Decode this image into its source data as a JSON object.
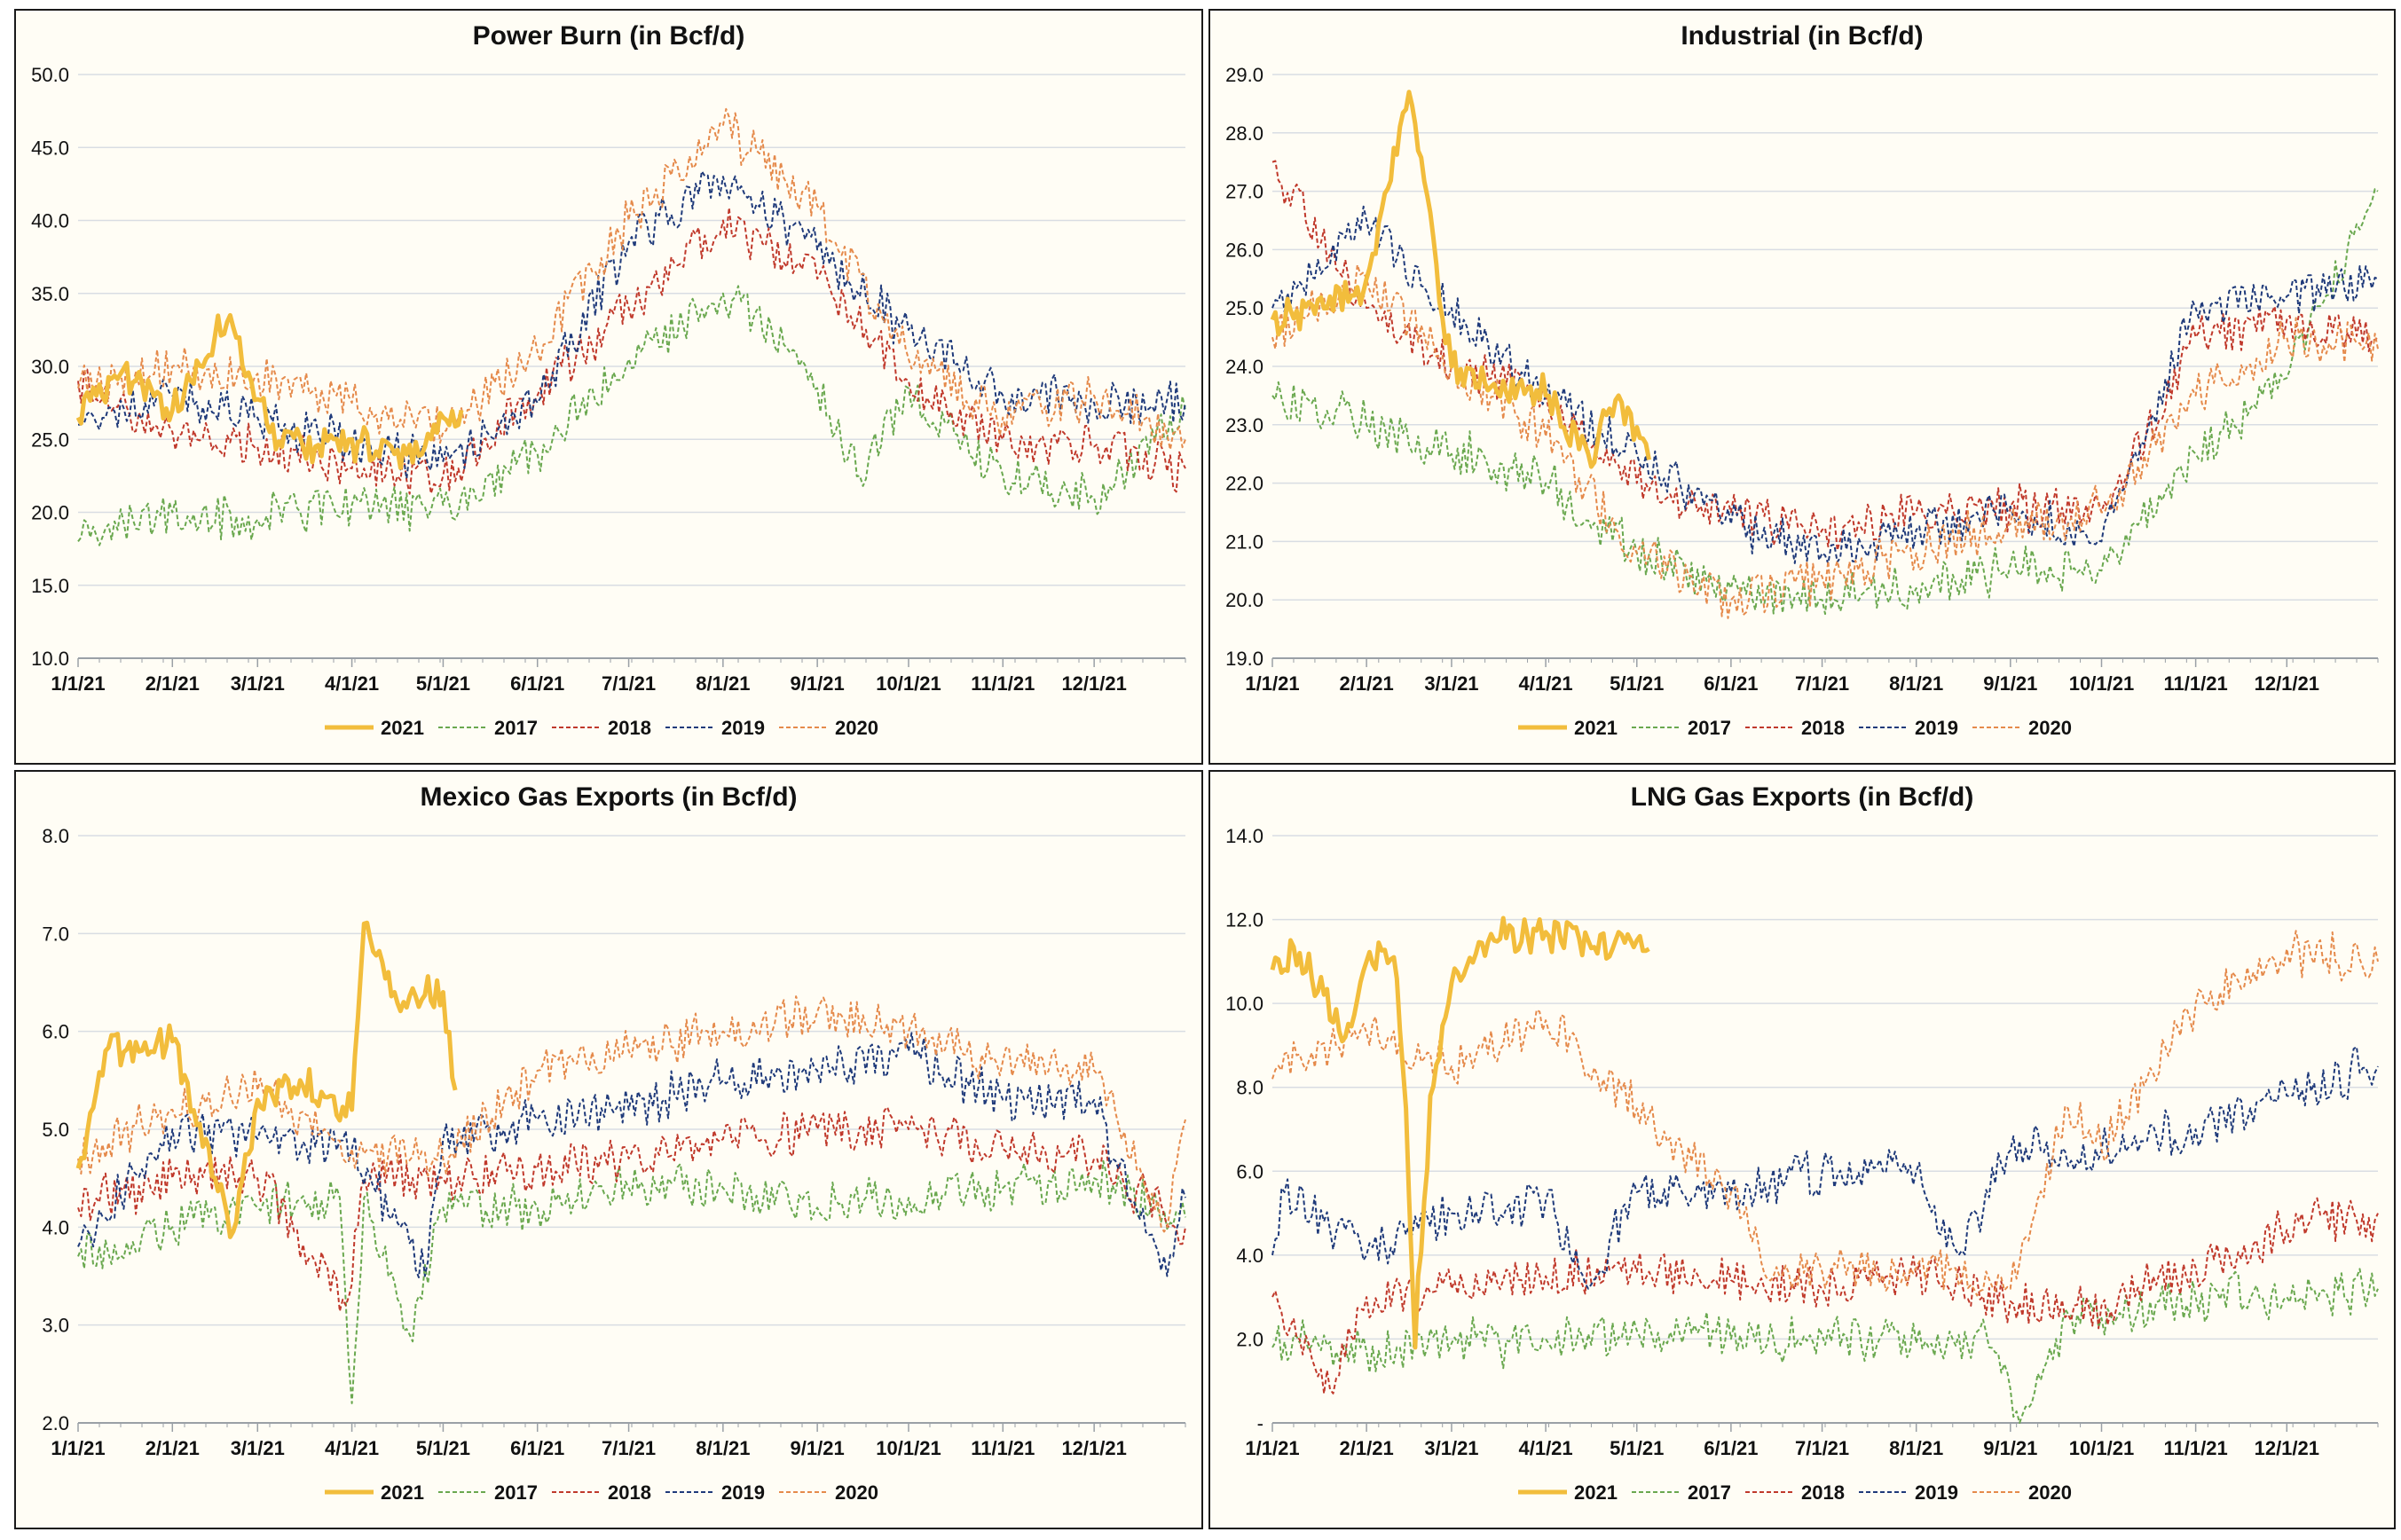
{
  "colors": {
    "2021": "#f2bd3c",
    "2017": "#6aa84f",
    "2018": "#c0392b",
    "2019": "#1f3a7a",
    "2020": "#e58a4b",
    "grid": "#d9dde3",
    "axis": "#9aa0a6",
    "panel_bg": "#fffdf5"
  },
  "legend": [
    "2021",
    "2017",
    "2018",
    "2019",
    "2020"
  ],
  "x_ticks": [
    "1/1/21",
    "2/1/21",
    "3/1/21",
    "4/1/21",
    "5/1/21",
    "6/1/21",
    "7/1/21",
    "8/1/21",
    "9/1/21",
    "10/1/21",
    "11/1/21",
    "12/1/21"
  ],
  "chart_data": [
    {
      "type": "line",
      "title": "Power Burn (in Bcf/d)",
      "x_axis": "date (Jan 1 – Dec 31)",
      "ylim": [
        10,
        50
      ],
      "y_ticks": [
        "10.0",
        "15.0",
        "20.0",
        "25.0",
        "30.0",
        "35.0",
        "40.0",
        "45.0",
        "50.0"
      ],
      "y_tick_values": [
        10,
        15,
        20,
        25,
        30,
        35,
        40,
        45,
        50
      ],
      "legend_position": "bottom",
      "grid": true,
      "series": [
        {
          "name": "2021",
          "style": "solid",
          "x": [
            "1/1/21",
            "1/15/21",
            "2/1/21",
            "2/20/21",
            "3/5/21",
            "3/20/21",
            "4/1/21",
            "4/15/21",
            "4/25/21",
            "5/1/21",
            "5/7/21"
          ],
          "values": [
            26.5,
            29.5,
            27.0,
            33.5,
            25.5,
            24.5,
            25.0,
            24.0,
            24.5,
            26.5,
            27.0
          ]
        },
        {
          "name": "2017",
          "style": "dashed",
          "x": [
            "1/1/21",
            "2/1/21",
            "3/1/21",
            "4/1/21",
            "5/1/21",
            "6/1/21",
            "7/1/21",
            "8/1/21",
            "8/25/21",
            "9/15/21",
            "10/1/21",
            "11/1/21",
            "12/1/21",
            "12/31/21"
          ],
          "values": [
            18.0,
            20.0,
            19.5,
            20.5,
            20.5,
            24.0,
            30.5,
            35.0,
            31.0,
            22.5,
            28.5,
            22.5,
            21.0,
            27.0
          ]
        },
        {
          "name": "2018",
          "style": "dashed",
          "x": [
            "1/1/21",
            "2/1/21",
            "3/1/21",
            "4/1/21",
            "5/1/21",
            "6/1/21",
            "7/1/21",
            "8/1/21",
            "9/1/21",
            "10/1/21",
            "11/1/21",
            "12/1/21",
            "12/31/21"
          ],
          "values": [
            29.0,
            25.5,
            24.5,
            23.0,
            22.5,
            28.0,
            34.0,
            40.0,
            36.0,
            29.0,
            25.0,
            24.5,
            23.0
          ]
        },
        {
          "name": "2019",
          "style": "dashed",
          "x": [
            "1/1/21",
            "2/1/21",
            "3/1/21",
            "4/1/21",
            "5/1/21",
            "6/1/21",
            "7/1/21",
            "8/1/21",
            "9/1/21",
            "10/1/21",
            "11/1/21",
            "12/1/21",
            "12/31/21"
          ],
          "values": [
            26.0,
            28.0,
            26.5,
            24.5,
            23.5,
            27.5,
            38.5,
            43.0,
            38.0,
            32.5,
            28.0,
            27.5,
            27.5
          ]
        },
        {
          "name": "2020",
          "style": "dashed",
          "x": [
            "1/1/21",
            "2/1/21",
            "3/1/21",
            "4/1/21",
            "5/1/21",
            "6/1/21",
            "7/1/21",
            "8/1/21",
            "9/1/21",
            "10/1/21",
            "11/1/21",
            "12/1/21",
            "12/31/21"
          ],
          "values": [
            28.5,
            30.0,
            29.5,
            27.5,
            25.5,
            31.0,
            40.0,
            46.5,
            41.0,
            30.5,
            26.5,
            28.0,
            25.0
          ]
        }
      ]
    },
    {
      "type": "line",
      "title": "Industrial (in Bcf/d)",
      "x_axis": "date (Jan 1 – Dec 31)",
      "ylim": [
        19,
        29
      ],
      "y_ticks": [
        "19.0",
        "20.0",
        "21.0",
        "22.0",
        "23.0",
        "24.0",
        "25.0",
        "26.0",
        "27.0",
        "28.0",
        "29.0"
      ],
      "y_tick_values": [
        19,
        20,
        21,
        22,
        23,
        24,
        25,
        26,
        27,
        28,
        29
      ],
      "legend_position": "bottom",
      "grid": true,
      "series": [
        {
          "name": "2021",
          "style": "solid",
          "x": [
            "1/1/21",
            "1/15/21",
            "2/1/21",
            "2/15/21",
            "3/1/21",
            "3/15/21",
            "4/1/21",
            "4/15/21",
            "4/25/21",
            "5/5/21"
          ],
          "values": [
            24.8,
            24.9,
            25.5,
            28.7,
            24.0,
            23.7,
            23.5,
            22.5,
            23.5,
            22.4
          ]
        },
        {
          "name": "2017",
          "style": "dashed",
          "x": [
            "1/1/21",
            "2/1/21",
            "3/1/21",
            "4/1/21",
            "5/1/21",
            "6/1/21",
            "7/1/21",
            "8/1/21",
            "9/1/21",
            "10/1/21",
            "11/1/21",
            "12/1/21",
            "12/31/21"
          ],
          "values": [
            23.5,
            23.0,
            22.5,
            22.0,
            20.8,
            20.2,
            20.0,
            20.2,
            20.6,
            20.5,
            22.5,
            23.8,
            27.0
          ]
        },
        {
          "name": "2018",
          "style": "dashed",
          "x": [
            "1/1/21",
            "2/1/21",
            "3/1/21",
            "4/1/21",
            "5/1/21",
            "6/1/21",
            "7/1/21",
            "8/1/21",
            "9/1/21",
            "10/1/21",
            "11/1/21",
            "12/1/21",
            "12/31/21"
          ],
          "values": [
            27.5,
            25.0,
            24.0,
            23.5,
            22.0,
            21.5,
            21.2,
            21.5,
            21.6,
            21.5,
            24.5,
            24.8,
            24.5
          ]
        },
        {
          "name": "2019",
          "style": "dashed",
          "x": [
            "1/1/21",
            "2/1/21",
            "3/1/21",
            "4/1/21",
            "5/1/21",
            "6/1/21",
            "7/1/21",
            "8/1/21",
            "9/1/21",
            "10/1/21",
            "11/1/21",
            "12/1/21",
            "12/31/21"
          ],
          "values": [
            25.0,
            26.5,
            25.0,
            23.5,
            22.5,
            21.3,
            20.8,
            21.2,
            21.6,
            21.0,
            25.0,
            25.2,
            25.5
          ]
        },
        {
          "name": "2020",
          "style": "dashed",
          "x": [
            "1/1/21",
            "2/1/21",
            "3/1/21",
            "4/1/21",
            "5/1/21",
            "6/1/21",
            "7/1/21",
            "8/1/21",
            "9/1/21",
            "10/1/21",
            "11/1/21",
            "12/1/21",
            "12/31/21"
          ],
          "values": [
            24.5,
            25.5,
            24.0,
            22.8,
            20.8,
            20.0,
            20.4,
            20.8,
            21.3,
            21.5,
            23.5,
            24.5,
            24.3
          ]
        }
      ]
    },
    {
      "type": "line",
      "title": "Mexico Gas Exports (in Bcf/d)",
      "x_axis": "date (Jan 1 – Dec 31)",
      "ylim": [
        2,
        8
      ],
      "y_ticks": [
        "2.0",
        "3.0",
        "4.0",
        "5.0",
        "6.0",
        "7.0",
        "8.0"
      ],
      "y_tick_values": [
        2,
        3,
        4,
        5,
        6,
        7,
        8
      ],
      "legend_position": "bottom",
      "grid": true,
      "series": [
        {
          "name": "2021",
          "style": "solid",
          "x": [
            "1/1/21",
            "1/10/21",
            "2/1/21",
            "2/15/21",
            "2/20/21",
            "3/1/21",
            "3/15/21",
            "4/1/21",
            "4/5/21",
            "4/15/21",
            "5/1/21",
            "5/5/21"
          ],
          "values": [
            4.6,
            5.8,
            5.9,
            4.5,
            3.9,
            5.3,
            5.5,
            5.2,
            7.1,
            6.4,
            6.4,
            5.4
          ]
        },
        {
          "name": "2017",
          "style": "dashed",
          "x": [
            "1/1/21",
            "2/1/21",
            "3/1/21",
            "3/28/21",
            "4/1/21",
            "4/5/21",
            "4/20/21",
            "5/1/21",
            "6/1/21",
            "7/1/21",
            "8/1/21",
            "9/1/21",
            "10/1/21",
            "11/1/21",
            "12/1/21",
            "12/31/21"
          ],
          "values": [
            3.7,
            4.0,
            4.2,
            4.3,
            2.2,
            4.3,
            2.9,
            4.2,
            4.2,
            4.4,
            4.4,
            4.2,
            4.3,
            4.4,
            4.5,
            4.1
          ]
        },
        {
          "name": "2018",
          "style": "dashed",
          "x": [
            "1/1/21",
            "2/1/21",
            "3/1/21",
            "3/30/21",
            "4/5/21",
            "5/1/21",
            "6/1/21",
            "7/1/21",
            "8/1/21",
            "9/1/21",
            "10/1/21",
            "11/1/21",
            "12/1/21",
            "12/31/21"
          ],
          "values": [
            4.2,
            4.5,
            4.5,
            3.2,
            4.5,
            4.5,
            4.6,
            4.7,
            4.9,
            5.0,
            5.0,
            4.8,
            4.7,
            4.0
          ]
        },
        {
          "name": "2019",
          "style": "dashed",
          "x": [
            "1/1/21",
            "2/1/21",
            "3/1/21",
            "4/1/21",
            "4/25/21",
            "5/1/21",
            "6/1/21",
            "7/1/21",
            "8/1/21",
            "9/1/21",
            "10/1/21",
            "11/1/21",
            "12/1/21",
            "12/25/21",
            "12/31/21"
          ],
          "values": [
            3.8,
            5.0,
            4.9,
            4.8,
            3.5,
            4.9,
            5.1,
            5.2,
            5.5,
            5.6,
            5.8,
            5.3,
            5.3,
            3.5,
            4.3
          ]
        },
        {
          "name": "2020",
          "style": "dashed",
          "x": [
            "1/1/21",
            "2/1/21",
            "3/1/21",
            "4/1/21",
            "5/1/21",
            "6/1/21",
            "7/1/21",
            "8/1/21",
            "9/1/21",
            "10/1/21",
            "11/1/21",
            "12/1/21",
            "12/25/21",
            "12/31/21"
          ],
          "values": [
            4.7,
            5.2,
            5.4,
            4.8,
            4.7,
            5.6,
            5.8,
            6.0,
            6.2,
            6.0,
            5.7,
            5.6,
            4.0,
            5.1
          ]
        }
      ]
    },
    {
      "type": "line",
      "title": "LNG Gas Exports (in Bcf/d)",
      "x_axis": "date (Jan 1 – Dec 31)",
      "ylim": [
        0,
        14
      ],
      "y_ticks": [
        "-",
        "2.0",
        "4.0",
        "6.0",
        "8.0",
        "10.0",
        "12.0",
        "14.0"
      ],
      "y_tick_values": [
        0,
        2,
        4,
        6,
        8,
        10,
        12,
        14
      ],
      "legend_position": "bottom",
      "grid": true,
      "series": [
        {
          "name": "2021",
          "style": "solid",
          "x": [
            "1/1/21",
            "1/10/21",
            "1/25/21",
            "2/1/21",
            "2/10/21",
            "2/14/21",
            "2/17/21",
            "2/22/21",
            "3/1/21",
            "3/15/21",
            "4/1/21",
            "4/15/21",
            "5/1/21",
            "5/5/21"
          ],
          "values": [
            10.8,
            11.2,
            9.2,
            11.0,
            11.1,
            7.5,
            1.8,
            7.8,
            10.5,
            11.5,
            11.7,
            11.5,
            11.5,
            11.3
          ]
        },
        {
          "name": "2017",
          "style": "dashed",
          "x": [
            "1/1/21",
            "2/1/21",
            "3/1/21",
            "4/1/21",
            "5/1/21",
            "6/1/21",
            "7/1/21",
            "8/1/21",
            "8/25/21",
            "9/5/21",
            "9/20/21",
            "10/1/21",
            "11/1/21",
            "12/1/21",
            "12/31/21"
          ],
          "values": [
            1.8,
            1.7,
            1.9,
            2.0,
            2.2,
            2.0,
            2.1,
            1.9,
            1.8,
            0.2,
            2.6,
            2.5,
            3.0,
            3.0,
            3.2
          ]
        },
        {
          "name": "2018",
          "style": "dashed",
          "x": [
            "1/1/21",
            "1/20/21",
            "2/1/21",
            "3/1/21",
            "4/1/21",
            "5/1/21",
            "6/1/21",
            "7/1/21",
            "8/1/21",
            "9/1/21",
            "10/1/21",
            "11/1/21",
            "12/1/21",
            "12/31/21"
          ],
          "values": [
            3.0,
            0.8,
            3.0,
            3.2,
            3.5,
            3.6,
            3.4,
            3.2,
            3.5,
            2.9,
            2.8,
            3.7,
            4.6,
            5.0
          ]
        },
        {
          "name": "2019",
          "style": "dashed",
          "x": [
            "1/1/21",
            "1/5/21",
            "2/1/21",
            "3/1/21",
            "4/1/21",
            "4/15/21",
            "5/1/21",
            "6/1/21",
            "7/1/21",
            "8/1/21",
            "8/15/21",
            "9/1/21",
            "10/1/21",
            "11/1/21",
            "12/1/21",
            "12/31/21"
          ],
          "values": [
            4.0,
            5.5,
            4.0,
            5.0,
            5.3,
            3.2,
            5.5,
            5.5,
            6.0,
            6.0,
            4.0,
            6.5,
            6.5,
            7.0,
            7.8,
            8.5
          ]
        },
        {
          "name": "2020",
          "style": "dashed",
          "x": [
            "1/1/21",
            "2/1/21",
            "3/1/21",
            "4/1/21",
            "5/1/21",
            "6/1/21",
            "6/15/21",
            "7/1/21",
            "8/1/21",
            "9/1/21",
            "9/20/21",
            "10/1/21",
            "11/1/21",
            "12/1/21",
            "12/31/21"
          ],
          "values": [
            8.2,
            9.3,
            8.5,
            9.6,
            7.5,
            5.5,
            3.5,
            3.6,
            3.7,
            3.2,
            7.5,
            6.5,
            10.0,
            11.3,
            11.0
          ]
        }
      ]
    }
  ]
}
